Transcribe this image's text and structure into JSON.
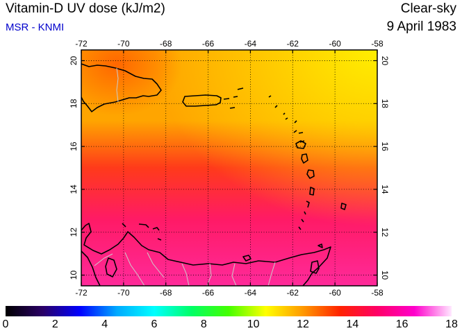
{
  "header": {
    "title": "Vitamin-D UV dose (kJ/m2)",
    "subtitle": "MSR - KNMI",
    "sky_condition": "Clear-sky",
    "date": "9 April 1983"
  },
  "map": {
    "lon_range": [
      -72,
      -58
    ],
    "lat_range": [
      9.5,
      20.5
    ],
    "lon_ticks": [
      "-72",
      "-70",
      "-68",
      "-66",
      "-64",
      "-62",
      "-60",
      "-58"
    ],
    "lat_ticks": [
      "10",
      "12",
      "14",
      "16",
      "18",
      "20"
    ],
    "gridlines": true,
    "region_colors": {
      "north_east": "#ffee00",
      "north": "#ffa500",
      "middle": "#ff3a1a",
      "south": "#ff1a66",
      "far_south": "#ff2a9a"
    }
  },
  "colorbar": {
    "min": 0,
    "max": 18,
    "labels": [
      "0",
      "2",
      "4",
      "6",
      "8",
      "10",
      "12",
      "14",
      "16",
      "18"
    ],
    "stops": [
      "#000000",
      "#2a0066",
      "#0000ff",
      "#00aaff",
      "#00ffff",
      "#00ff66",
      "#44ff00",
      "#ffff00",
      "#ff9900",
      "#ff2200",
      "#ff0066",
      "#ff00cc",
      "#ffe8ff"
    ]
  }
}
